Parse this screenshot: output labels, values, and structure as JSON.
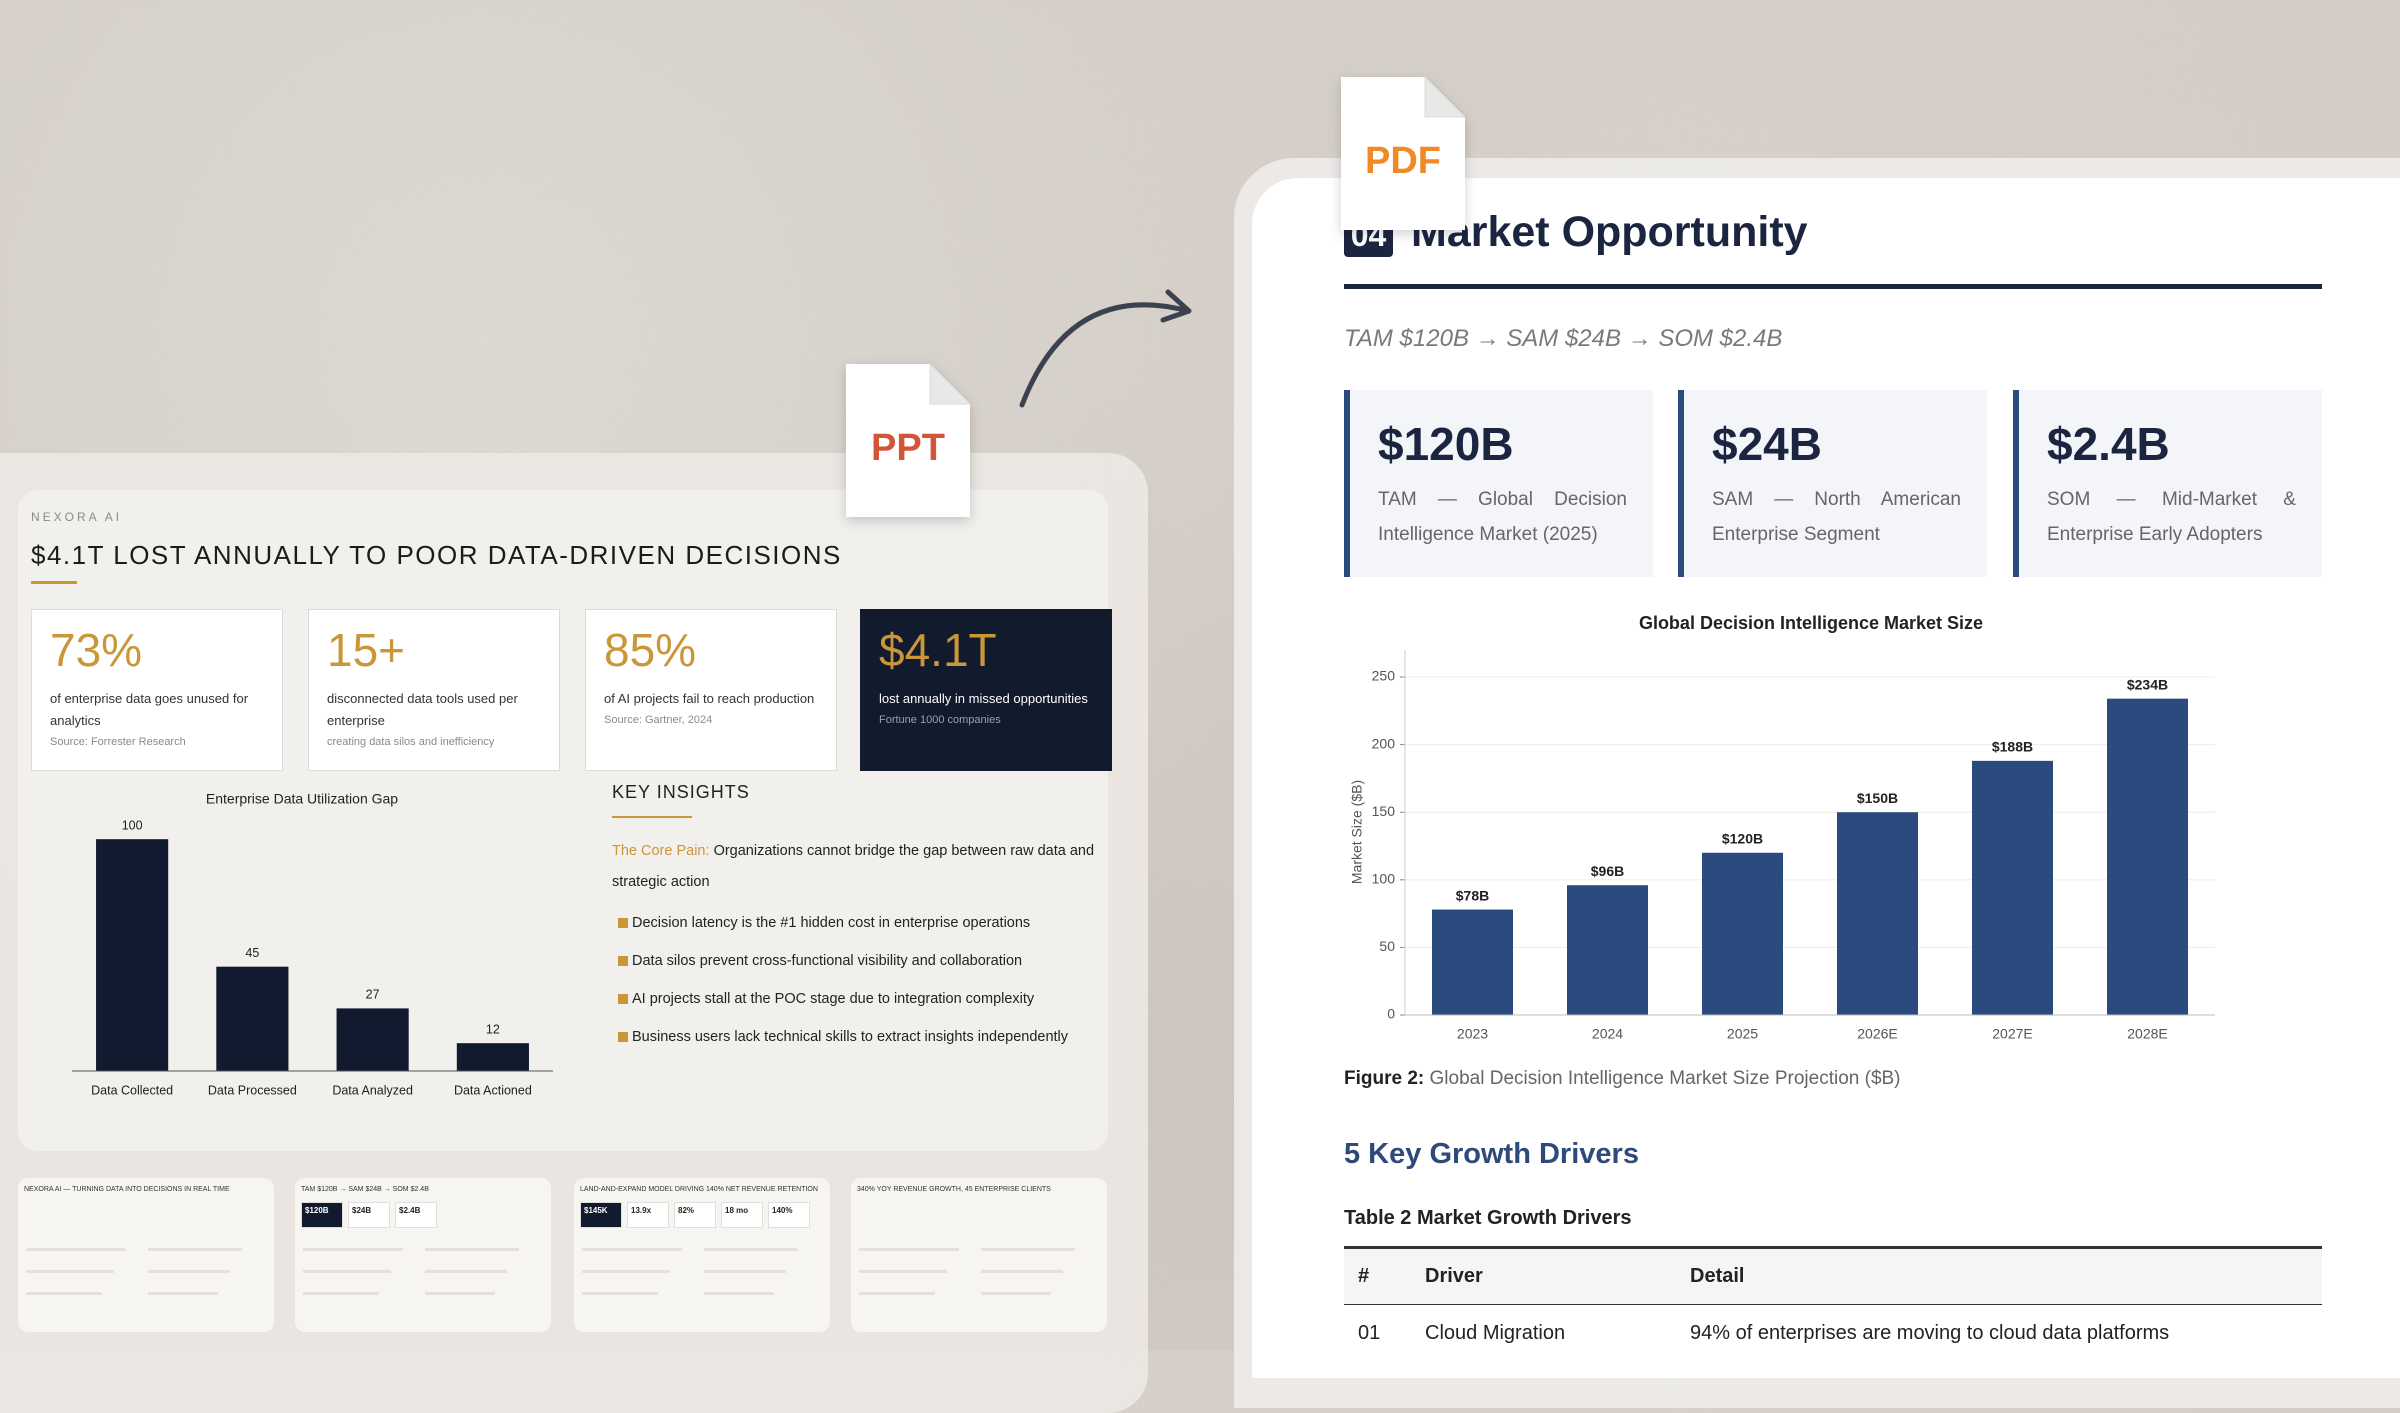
{
  "ppt_icon": "PPT",
  "pdf_icon": "PDF",
  "slide": {
    "brand": "NEXORA AI",
    "title": "$4.1T LOST ANNUALLY TO POOR DATA-DRIVEN DECISIONS",
    "stats": [
      {
        "value": "73%",
        "text": "of enterprise data goes unused for analytics",
        "note": "Source: Forrester Research"
      },
      {
        "value": "15+",
        "text": "disconnected data tools used per enterprise",
        "note": "creating data silos and inefficiency"
      },
      {
        "value": "85%",
        "text": "of AI projects fail to reach production",
        "note": "Source: Gartner, 2024"
      },
      {
        "value": "$4.1T",
        "text": "lost annually in missed opportunities",
        "note": "Fortune 1000 companies"
      }
    ],
    "chart": {
      "type": "bar",
      "title": "Enterprise Data Utilization Gap",
      "categories": [
        "Data Collected",
        "Data Processed",
        "Data Analyzed",
        "Data Actioned"
      ],
      "values": [
        100,
        45,
        27,
        12
      ],
      "ylim": [
        0,
        110
      ],
      "color": "#111a2e"
    },
    "insights": {
      "title": "KEY INSIGHTS",
      "lead_label": "The Core Pain:",
      "lead": "Organizations cannot bridge the gap between raw data and strategic action",
      "bullets": [
        "Decision latency is the #1 hidden cost in enterprise operations",
        "Data silos prevent cross-functional visibility and collaboration",
        "AI projects stall at the POC stage due to integration complexity",
        "Business users lack technical skills to extract insights independently"
      ]
    }
  },
  "thumbnails": [
    {
      "title": "NEXORA AI — TURNING DATA INTO DECISIONS IN REAL TIME",
      "tiles": []
    },
    {
      "title": "TAM $120B → SAM $24B → SOM $2.4B",
      "tiles": [
        "$120B",
        "$24B",
        "$2.4B"
      ]
    },
    {
      "title": "LAND-AND-EXPAND MODEL DRIVING 140% NET REVENUE RETENTION",
      "tiles": [
        "$145K",
        "13.9x",
        "82%",
        "18 mo",
        "140%"
      ]
    },
    {
      "title": "340% YOY REVENUE GROWTH, 45 ENTERPRISE CLIENTS",
      "tiles": []
    }
  ],
  "document": {
    "section_number": "04",
    "title": "Market Opportunity",
    "subtitle": "TAM $120B → SAM $24B → SOM $2.4B",
    "cards": [
      {
        "value": "$120B",
        "text": "TAM — Global Decision Intelligence Market (2025)"
      },
      {
        "value": "$24B",
        "text": "SAM — North American Enterprise Segment"
      },
      {
        "value": "$2.4B",
        "text": "SOM — Mid-Market & Enterprise Early Adopters"
      }
    ],
    "chart": {
      "type": "bar",
      "title": "Global Decision Intelligence Market Size",
      "y_label": "Market Size ($B)",
      "categories": [
        "2023",
        "2024",
        "2025",
        "2026E",
        "2027E",
        "2028E"
      ],
      "values": [
        78,
        96,
        120,
        150,
        188,
        234
      ],
      "value_labels": [
        "$78B",
        "$96B",
        "$120B",
        "$150B",
        "$188B",
        "$234B"
      ],
      "ylim": [
        0,
        270
      ],
      "yticks": [
        0,
        50,
        100,
        150,
        200,
        250
      ],
      "grid": true,
      "color": "#2b4a7e"
    },
    "figure_caption": {
      "label": "Figure 2:",
      "text": "Global Decision Intelligence Market Size Projection ($B)"
    },
    "drivers_heading": "5 Key Growth Drivers",
    "table": {
      "caption": "Table 2 Market Growth Drivers",
      "header": [
        "#",
        "Driver",
        "Detail"
      ],
      "rows": [
        [
          "01",
          "Cloud Migration",
          "94% of enterprises are moving to cloud data platforms"
        ]
      ]
    }
  }
}
